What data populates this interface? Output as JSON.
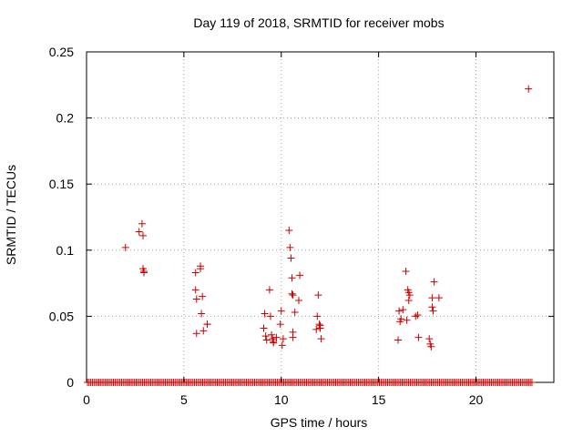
{
  "chart_data": {
    "type": "scatter",
    "title": "Day 119 of 2018, SRMTID for receiver mobs",
    "xlabel": "GPS time / hours",
    "ylabel": "SRMTID / TECUs",
    "xlim": [
      0,
      24
    ],
    "ylim": [
      0,
      0.25
    ],
    "xticks": [
      0,
      5,
      10,
      15,
      20
    ],
    "yticks": [
      0,
      0.05,
      0.1,
      0.15,
      0.2,
      0.25
    ],
    "xtick_labels": [
      "0",
      "5",
      "10",
      "15",
      "20"
    ],
    "ytick_labels": [
      "0",
      "0.05",
      "0.1",
      "0.15",
      "0.2",
      "0.25"
    ],
    "grid": true,
    "marker": "+",
    "color": "#cc0000",
    "zero_band": {
      "x_start": 0.05,
      "x_end": 22.9,
      "step": 0.0833,
      "y": 0
    },
    "series": [
      {
        "name": "SRMTID",
        "x": [
          2.0,
          2.7,
          2.85,
          2.9,
          2.9,
          2.95,
          2.95,
          5.6,
          5.6,
          5.65,
          5.65,
          5.85,
          5.85,
          5.9,
          5.95,
          6.0,
          6.2,
          6.2,
          9.1,
          9.15,
          9.2,
          9.25,
          9.4,
          9.45,
          9.5,
          9.55,
          9.6,
          9.6,
          9.75,
          9.95,
          10.0,
          10.05,
          10.1,
          10.4,
          10.45,
          10.5,
          10.55,
          10.55,
          10.6,
          10.6,
          10.6,
          10.7,
          10.9,
          10.95,
          11.8,
          11.85,
          11.9,
          11.95,
          12.0,
          12.0,
          12.05,
          16.0,
          16.05,
          16.1,
          16.15,
          16.25,
          16.4,
          16.45,
          16.5,
          16.55,
          16.55,
          16.6,
          16.9,
          17.0,
          17.05,
          17.6,
          17.65,
          17.7,
          17.75,
          17.75,
          17.8,
          17.85,
          18.1,
          22.7
        ],
        "y": [
          0.102,
          0.114,
          0.12,
          0.111,
          0.086,
          0.084,
          0.083,
          0.083,
          0.07,
          0.063,
          0.037,
          0.088,
          0.086,
          0.052,
          0.065,
          0.039,
          0.044,
          0.044,
          0.041,
          0.052,
          0.035,
          0.032,
          0.07,
          0.05,
          0.036,
          0.033,
          0.031,
          0.03,
          0.034,
          0.044,
          0.054,
          0.028,
          0.033,
          0.115,
          0.102,
          0.094,
          0.079,
          0.067,
          0.066,
          0.038,
          0.034,
          0.053,
          0.062,
          0.081,
          0.04,
          0.05,
          0.066,
          0.044,
          0.041,
          0.043,
          0.033,
          0.032,
          0.054,
          0.046,
          0.048,
          0.055,
          0.084,
          0.047,
          0.07,
          0.068,
          0.062,
          0.066,
          0.05,
          0.051,
          0.034,
          0.033,
          0.029,
          0.027,
          0.064,
          0.057,
          0.054,
          0.076,
          0.064,
          0.222
        ]
      }
    ]
  }
}
